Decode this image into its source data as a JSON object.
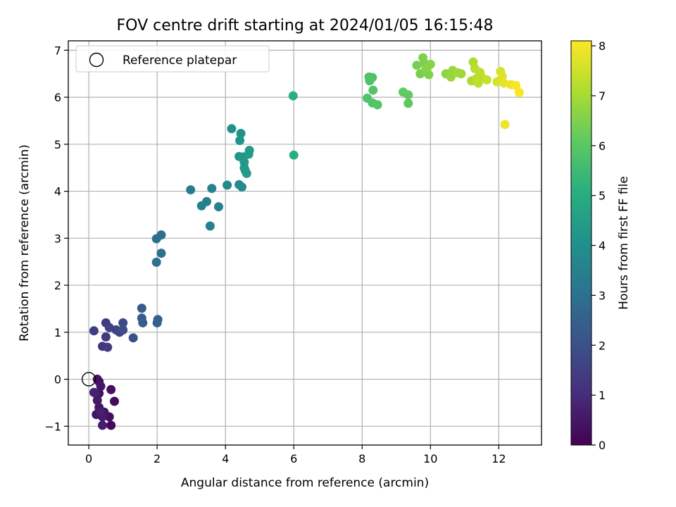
{
  "chart_data": {
    "type": "scatter",
    "title": "FOV centre drift starting at 2024/01/05 16:15:48",
    "xlabel": "Angular distance from reference (arcmin)",
    "ylabel": "Rotation from reference (arcmin)",
    "xlim": [
      -0.6,
      13.25
    ],
    "ylim": [
      -1.4,
      7.2
    ],
    "xticks": [
      0,
      2,
      4,
      6,
      8,
      10,
      12
    ],
    "yticks": [
      -1,
      0,
      1,
      2,
      3,
      4,
      5,
      6,
      7
    ],
    "grid": true,
    "legend": {
      "position": "top-left",
      "entries": [
        "Reference platepar"
      ]
    },
    "reference_point": {
      "x": 0,
      "y": 0
    },
    "colorbar": {
      "label": "Hours from first FF file",
      "range": [
        0,
        8.1
      ],
      "ticks": [
        0,
        1,
        2,
        3,
        4,
        5,
        6,
        7,
        8
      ],
      "colormap": "viridis"
    },
    "points": [
      {
        "x": 0.25,
        "y": 0.0,
        "t": 0.3
      },
      {
        "x": 0.3,
        "y": -0.05,
        "t": 0.4
      },
      {
        "x": 0.35,
        "y": -0.15,
        "t": 0.5
      },
      {
        "x": 0.2,
        "y": -0.3,
        "t": 0.6
      },
      {
        "x": 0.3,
        "y": -0.3,
        "t": 0.35
      },
      {
        "x": 0.25,
        "y": -0.45,
        "t": 0.55
      },
      {
        "x": 0.3,
        "y": -0.6,
        "t": 0.5
      },
      {
        "x": 0.22,
        "y": -0.75,
        "t": 0.45
      },
      {
        "x": 0.35,
        "y": -0.7,
        "t": 0.7
      },
      {
        "x": 0.4,
        "y": -0.8,
        "t": 0.6
      },
      {
        "x": 0.45,
        "y": -0.7,
        "t": 0.4
      },
      {
        "x": 0.4,
        "y": -0.98,
        "t": 0.65
      },
      {
        "x": 0.6,
        "y": -0.8,
        "t": 0.3
      },
      {
        "x": 0.65,
        "y": -0.98,
        "t": 0.2
      },
      {
        "x": 0.65,
        "y": -0.22,
        "t": 0.35
      },
      {
        "x": 0.75,
        "y": -0.47,
        "t": 0.2
      },
      {
        "x": 0.15,
        "y": -0.28,
        "t": 0.8
      },
      {
        "x": 0.15,
        "y": 1.03,
        "t": 1.5
      },
      {
        "x": 0.5,
        "y": 1.2,
        "t": 1.4
      },
      {
        "x": 0.6,
        "y": 1.1,
        "t": 1.6
      },
      {
        "x": 0.8,
        "y": 1.05,
        "t": 1.5
      },
      {
        "x": 0.9,
        "y": 1.0,
        "t": 1.7
      },
      {
        "x": 1.0,
        "y": 1.2,
        "t": 1.8
      },
      {
        "x": 1.0,
        "y": 1.05,
        "t": 1.9
      },
      {
        "x": 0.5,
        "y": 0.9,
        "t": 1.3
      },
      {
        "x": 0.4,
        "y": 0.7,
        "t": 1.2
      },
      {
        "x": 0.55,
        "y": 0.68,
        "t": 1.4
      },
      {
        "x": 1.3,
        "y": 0.88,
        "t": 2.0
      },
      {
        "x": 1.55,
        "y": 1.51,
        "t": 2.3
      },
      {
        "x": 1.55,
        "y": 1.3,
        "t": 2.4
      },
      {
        "x": 1.58,
        "y": 1.2,
        "t": 2.4
      },
      {
        "x": 2.0,
        "y": 1.2,
        "t": 2.5
      },
      {
        "x": 2.02,
        "y": 1.27,
        "t": 2.5
      },
      {
        "x": 1.98,
        "y": 2.99,
        "t": 2.9
      },
      {
        "x": 2.12,
        "y": 3.07,
        "t": 2.9
      },
      {
        "x": 1.98,
        "y": 2.49,
        "t": 3.0
      },
      {
        "x": 2.12,
        "y": 2.68,
        "t": 3.0
      },
      {
        "x": 2.98,
        "y": 4.03,
        "t": 3.4
      },
      {
        "x": 3.3,
        "y": 3.69,
        "t": 3.5
      },
      {
        "x": 3.45,
        "y": 3.78,
        "t": 3.5
      },
      {
        "x": 3.6,
        "y": 4.06,
        "t": 3.6
      },
      {
        "x": 3.8,
        "y": 3.67,
        "t": 3.6
      },
      {
        "x": 3.55,
        "y": 3.26,
        "t": 3.5
      },
      {
        "x": 4.05,
        "y": 4.13,
        "t": 3.8
      },
      {
        "x": 4.4,
        "y": 4.14,
        "t": 3.9
      },
      {
        "x": 4.48,
        "y": 4.09,
        "t": 3.9
      },
      {
        "x": 4.18,
        "y": 5.33,
        "t": 4.1
      },
      {
        "x": 4.45,
        "y": 5.23,
        "t": 4.1
      },
      {
        "x": 4.42,
        "y": 5.08,
        "t": 4.2
      },
      {
        "x": 4.4,
        "y": 4.74,
        "t": 4.2
      },
      {
        "x": 4.52,
        "y": 4.73,
        "t": 4.3
      },
      {
        "x": 4.55,
        "y": 4.62,
        "t": 4.3
      },
      {
        "x": 4.55,
        "y": 4.5,
        "t": 4.3
      },
      {
        "x": 4.62,
        "y": 4.38,
        "t": 4.4
      },
      {
        "x": 4.68,
        "y": 4.79,
        "t": 4.4
      },
      {
        "x": 4.7,
        "y": 4.87,
        "t": 4.4
      },
      {
        "x": 4.58,
        "y": 4.44,
        "t": 4.35
      },
      {
        "x": 5.98,
        "y": 6.03,
        "t": 5.1
      },
      {
        "x": 6.0,
        "y": 4.77,
        "t": 5.1
      },
      {
        "x": 8.2,
        "y": 6.43,
        "t": 5.8
      },
      {
        "x": 8.22,
        "y": 6.35,
        "t": 5.8
      },
      {
        "x": 8.3,
        "y": 6.42,
        "t": 5.8
      },
      {
        "x": 8.32,
        "y": 6.15,
        "t": 5.9
      },
      {
        "x": 8.15,
        "y": 5.98,
        "t": 5.8
      },
      {
        "x": 8.3,
        "y": 5.88,
        "t": 5.85
      },
      {
        "x": 8.45,
        "y": 5.84,
        "t": 5.9
      },
      {
        "x": 9.2,
        "y": 6.11,
        "t": 6.1
      },
      {
        "x": 9.35,
        "y": 6.05,
        "t": 6.1
      },
      {
        "x": 9.35,
        "y": 5.87,
        "t": 6.05
      },
      {
        "x": 9.6,
        "y": 6.68,
        "t": 6.4
      },
      {
        "x": 9.7,
        "y": 6.5,
        "t": 6.4
      },
      {
        "x": 9.78,
        "y": 6.84,
        "t": 6.5
      },
      {
        "x": 9.85,
        "y": 6.57,
        "t": 6.5
      },
      {
        "x": 9.9,
        "y": 6.62,
        "t": 6.6
      },
      {
        "x": 9.95,
        "y": 6.48,
        "t": 6.5
      },
      {
        "x": 10.0,
        "y": 6.7,
        "t": 6.6
      },
      {
        "x": 9.82,
        "y": 6.72,
        "t": 6.45
      },
      {
        "x": 10.45,
        "y": 6.5,
        "t": 6.7
      },
      {
        "x": 10.6,
        "y": 6.43,
        "t": 6.8
      },
      {
        "x": 10.65,
        "y": 6.57,
        "t": 6.8
      },
      {
        "x": 10.8,
        "y": 6.52,
        "t": 6.9
      },
      {
        "x": 10.9,
        "y": 6.5,
        "t": 6.9
      },
      {
        "x": 11.2,
        "y": 6.35,
        "t": 7.1
      },
      {
        "x": 11.25,
        "y": 6.75,
        "t": 7.1
      },
      {
        "x": 11.3,
        "y": 6.61,
        "t": 7.2
      },
      {
        "x": 11.35,
        "y": 6.4,
        "t": 7.2
      },
      {
        "x": 11.4,
        "y": 6.3,
        "t": 7.3
      },
      {
        "x": 11.45,
        "y": 6.53,
        "t": 7.3
      },
      {
        "x": 11.5,
        "y": 6.42,
        "t": 7.2
      },
      {
        "x": 11.65,
        "y": 6.37,
        "t": 7.4
      },
      {
        "x": 11.95,
        "y": 6.33,
        "t": 7.6
      },
      {
        "x": 12.05,
        "y": 6.55,
        "t": 7.6
      },
      {
        "x": 12.1,
        "y": 6.45,
        "t": 7.7
      },
      {
        "x": 12.15,
        "y": 6.3,
        "t": 7.8
      },
      {
        "x": 12.18,
        "y": 5.42,
        "t": 7.9
      },
      {
        "x": 12.35,
        "y": 6.27,
        "t": 7.9
      },
      {
        "x": 12.5,
        "y": 6.25,
        "t": 8.0
      },
      {
        "x": 12.6,
        "y": 6.1,
        "t": 8.1
      }
    ]
  }
}
